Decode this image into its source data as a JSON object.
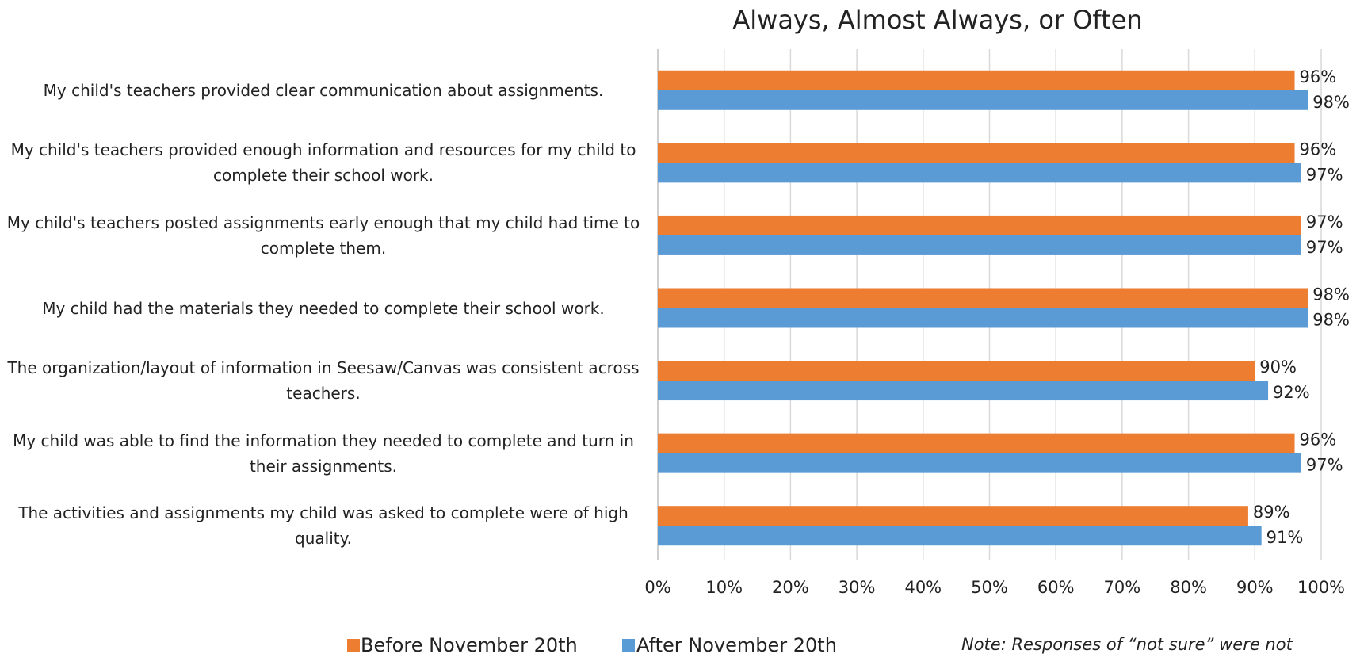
{
  "chart_data": {
    "type": "bar",
    "orientation": "horizontal",
    "title": "Always, Almost Always, or Often",
    "categories": [
      "My child's teachers provided clear communication about assignments.",
      "My child's teachers provided enough information and resources for my child to complete their school work.",
      "My child's teachers posted assignments early enough that my child had time to complete them.",
      "My child had the materials they needed to complete their school work.",
      "The organization/layout of information in Seesaw/Canvas was consistent across teachers.",
      "My child was able to find the information they needed to complete and turn in their assignments.",
      "The activities and assignments my child was asked to complete were of high quality."
    ],
    "series": [
      {
        "name": "Before November 20th",
        "color": "#ed7d31",
        "values": [
          96,
          96,
          97,
          98,
          90,
          96,
          89
        ],
        "value_labels": [
          "96%",
          "96%",
          "97%",
          "98%",
          "90%",
          "96%",
          "89%"
        ]
      },
      {
        "name": "After November 20th",
        "color": "#5b9bd5",
        "values": [
          98,
          97,
          97,
          98,
          92,
          97,
          91
        ],
        "value_labels": [
          "98%",
          "97%",
          "97%",
          "98%",
          "92%",
          "97%",
          "91%"
        ]
      }
    ],
    "xlim": [
      0,
      100
    ],
    "xticks": [
      {
        "value": 0,
        "label": "0%"
      },
      {
        "value": 10,
        "label": "10%"
      },
      {
        "value": 20,
        "label": "20%"
      },
      {
        "value": 30,
        "label": "30%"
      },
      {
        "value": 40,
        "label": "40%"
      },
      {
        "value": 50,
        "label": "50%"
      },
      {
        "value": 60,
        "label": "60%"
      },
      {
        "value": 70,
        "label": "70%"
      },
      {
        "value": 80,
        "label": "80%"
      },
      {
        "value": 90,
        "label": "90%"
      },
      {
        "value": 100,
        "label": "100%"
      }
    ],
    "grid": true,
    "legend": "bottom",
    "note": "Note: Responses of “not sure” were not"
  }
}
